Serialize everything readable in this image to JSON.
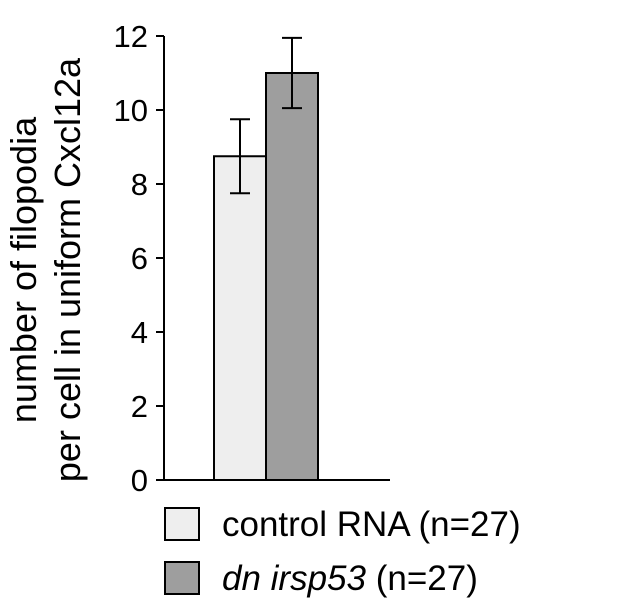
{
  "chart_data": {
    "type": "bar",
    "categories": [
      "control RNA",
      "dn irsp53"
    ],
    "values": [
      8.75,
      11.0
    ],
    "errors": [
      1.0,
      0.95
    ],
    "colors": [
      "#eeeeee",
      "#9e9e9e"
    ],
    "ylabel_lines": [
      "number of filopodia",
      "per cell in uniform Cxcl12a"
    ],
    "ylim": [
      0,
      12
    ],
    "yticks": [
      0,
      2,
      4,
      6,
      8,
      10,
      12
    ],
    "grid": false,
    "legend": {
      "placement": "bottom",
      "entries": [
        {
          "prefix": "control RNA",
          "prefix_italic": false,
          "suffix": " (n=27)",
          "color": "#eeeeee"
        },
        {
          "prefix": "dn irsp53",
          "prefix_italic": true,
          "suffix": " (n=27)",
          "color": "#9e9e9e"
        }
      ]
    }
  }
}
